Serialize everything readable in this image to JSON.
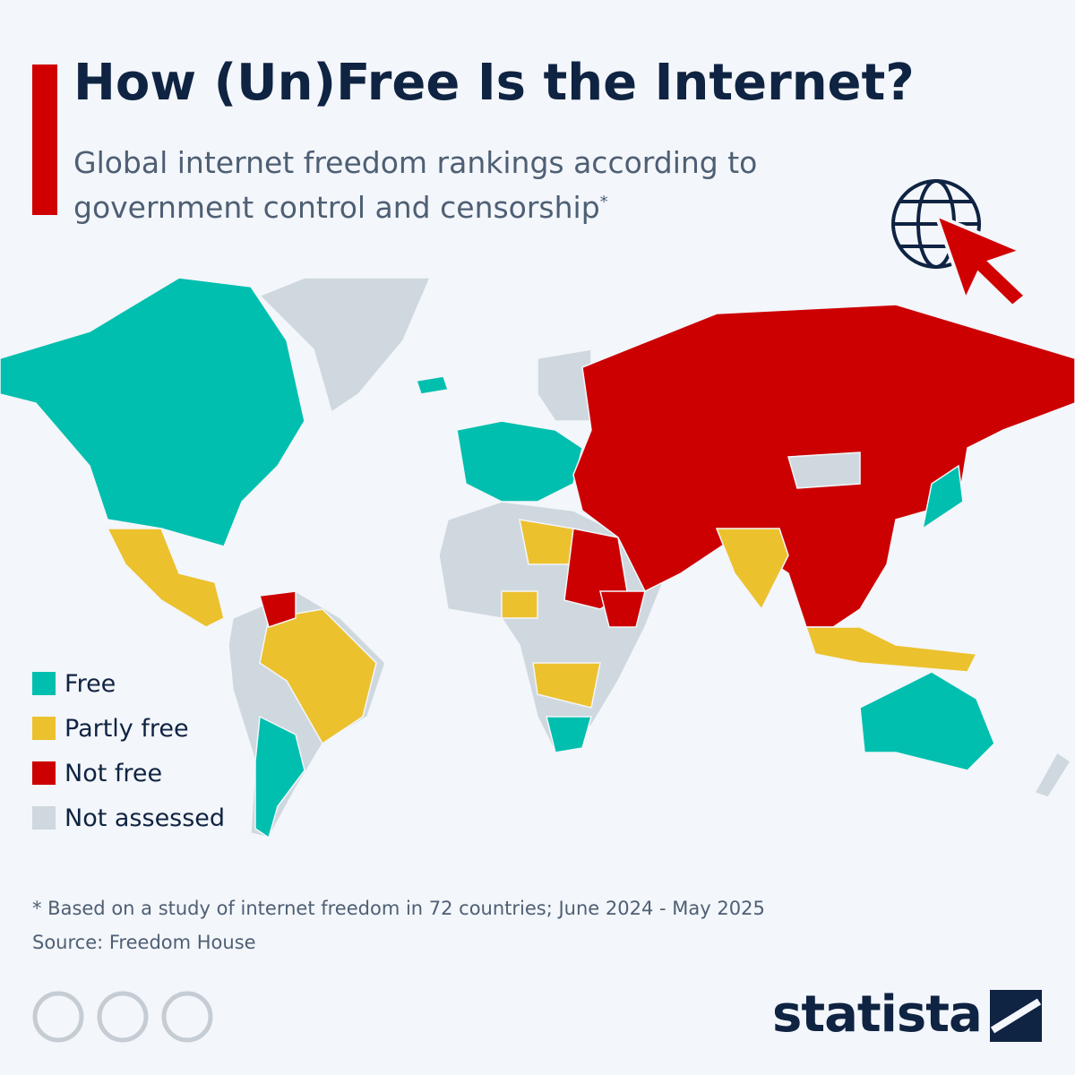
{
  "header": {
    "title": "How (Un)Free Is the Internet?",
    "subtitle": "Global internet freedom rankings according to government control and censorship",
    "subtitle_mark": "*"
  },
  "legend": {
    "items": [
      {
        "label": "Free",
        "color": "#00bfae"
      },
      {
        "label": "Partly free",
        "color": "#ecc12e"
      },
      {
        "label": "Not free",
        "color": "#cc0000"
      },
      {
        "label": "Not assessed",
        "color": "#cfd8df"
      }
    ]
  },
  "footer": {
    "note": "* Based on a study of internet freedom in 72 countries; June 2024 - May 2025",
    "source": "Source: Freedom House",
    "brand": "statista"
  }
}
